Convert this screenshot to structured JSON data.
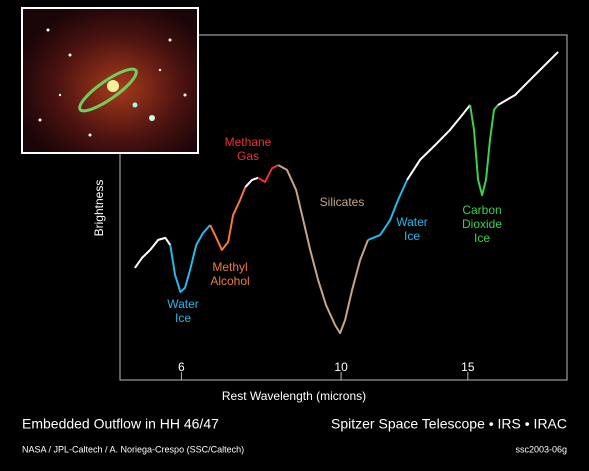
{
  "chart_data": {
    "type": "line",
    "xscale": "log",
    "xlabel": "Rest Wavelength (microns)",
    "ylabel": "Brightness",
    "xlim": [
      4.93,
      20.6
    ],
    "ylim": [
      0,
      100
    ],
    "xticks": [
      6,
      10,
      15
    ],
    "series": [
      {
        "color": "#ffffff",
        "x": [
          5.17,
          5.29,
          5.43,
          5.57,
          5.7,
          5.79
        ],
        "values": [
          32.5,
          35.4,
          37.7,
          40.6,
          41.2,
          39.1
        ]
      },
      {
        "color": "#29b6e8",
        "x": [
          5.79,
          5.88,
          5.98,
          6.07,
          6.17,
          6.29,
          6.43,
          6.58
        ],
        "values": [
          39.1,
          30.4,
          25.5,
          26.7,
          31.9,
          39.1,
          42.6,
          44.9
        ]
      },
      {
        "color": "#f07a3a",
        "x": [
          6.58,
          6.68,
          6.83,
          6.97,
          7.08,
          7.24,
          7.36
        ],
        "values": [
          44.9,
          42.0,
          37.7,
          40.0,
          47.8,
          52.2,
          55.9
        ]
      },
      {
        "color": "#ffffff",
        "x": [
          7.36,
          7.52,
          7.67
        ],
        "values": [
          55.9,
          58.0,
          58.6
        ]
      },
      {
        "color": "#e8323c",
        "x": [
          7.67,
          7.84,
          8.02,
          8.18
        ],
        "values": [
          58.6,
          57.4,
          61.4,
          62.3
        ]
      },
      {
        "color": "#c4a58a",
        "x": [
          8.18,
          8.41,
          8.66,
          8.86,
          9.06,
          9.29,
          9.53,
          9.81,
          9.97,
          10.13,
          10.36,
          10.63,
          10.9
        ],
        "values": [
          62.3,
          60.9,
          55.1,
          46.4,
          37.7,
          29.0,
          21.7,
          15.9,
          13.6,
          17.4,
          26.1,
          34.8,
          40.6
        ]
      },
      {
        "color": "#29b6e8",
        "x": [
          10.9,
          11.33,
          11.7,
          12.0,
          12.35
        ],
        "values": [
          40.6,
          42.0,
          46.4,
          52.2,
          58.0
        ]
      },
      {
        "color": "#ffffff",
        "x": [
          12.35,
          12.87,
          13.51,
          14.17,
          14.73,
          15.11
        ],
        "values": [
          58.0,
          63.8,
          68.1,
          72.5,
          76.8,
          79.7
        ]
      },
      {
        "color": "#3ccf4e",
        "x": [
          15.11,
          15.3,
          15.5,
          15.7,
          15.9,
          16.1,
          16.31,
          16.52
        ],
        "values": [
          79.7,
          72.5,
          58.0,
          53.6,
          58.0,
          69.6,
          78.3,
          79.7
        ]
      },
      {
        "color": "#ffffff",
        "x": [
          16.52,
          17.45,
          18.3,
          19.2,
          20.02
        ],
        "values": [
          79.7,
          82.6,
          87.0,
          91.3,
          95.1
        ]
      }
    ],
    "annotations": [
      {
        "lines": [
          "Water",
          "Ice"
        ],
        "color": "#29b6e8"
      },
      {
        "lines": [
          "Methyl",
          "Alcohol"
        ],
        "color": "#f07a3a"
      },
      {
        "lines": [
          "Methane",
          "Gas"
        ],
        "color": "#e8323c"
      },
      {
        "lines": [
          "Silicates"
        ],
        "color": "#c4a58a"
      },
      {
        "lines": [
          "Water",
          "Ice"
        ],
        "color": "#29b6e8"
      },
      {
        "lines": [
          "Carbon",
          "Dioxide",
          "Ice"
        ],
        "color": "#3ccf4e"
      }
    ]
  },
  "footer": {
    "title": "Embedded Outflow in HH 46/47",
    "mission": "Spitzer Space Telescope • IRS • IRAC",
    "credit": "NASA / JPL-Caltech / A. Noriega-Crespo (SSC/Caltech)",
    "id": "ssc2003-06g"
  }
}
